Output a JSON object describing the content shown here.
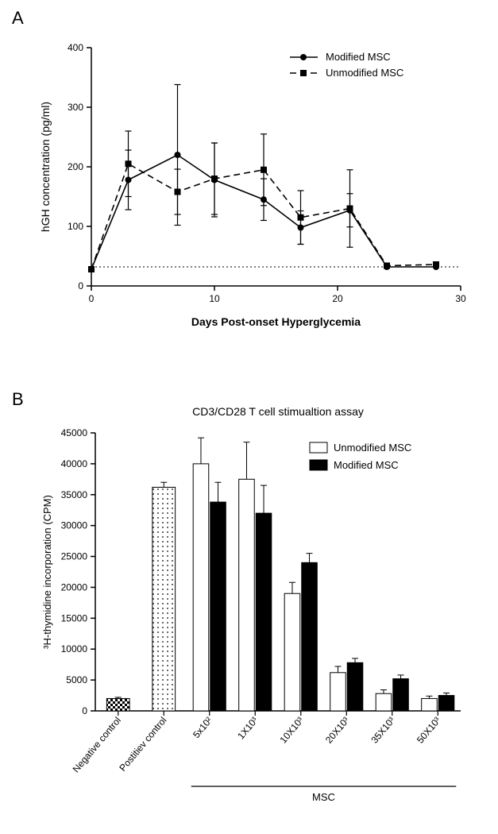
{
  "panelA": {
    "label": "A",
    "type": "line",
    "title": "",
    "xlabel": "Days Post-onset Hyperglycemia",
    "ylabel": "hGH concentration (pg/ml)",
    "label_fontsize": 14,
    "tick_fontsize": 12,
    "xlim": [
      0,
      30
    ],
    "ylim": [
      0,
      400
    ],
    "xtick_step": 10,
    "ytick_step": 100,
    "axis_color": "#000000",
    "background_color": "#ffffff",
    "reference_line_y": 32,
    "reference_line_dash": "dotted",
    "series": [
      {
        "name": "Modified MSC",
        "marker": "circle",
        "dash": "solid",
        "color": "#000000",
        "x": [
          0,
          3,
          7,
          10,
          14,
          17,
          21,
          24,
          28
        ],
        "y": [
          28,
          178,
          220,
          178,
          145,
          98,
          127,
          32,
          32
        ],
        "err": [
          0,
          50,
          118,
          62,
          35,
          28,
          28,
          0,
          0
        ]
      },
      {
        "name": "Unmodified MSC",
        "marker": "square",
        "dash": "dashed",
        "color": "#000000",
        "x": [
          0,
          3,
          7,
          10,
          14,
          17,
          21,
          24,
          28
        ],
        "y": [
          28,
          205,
          158,
          180,
          195,
          115,
          130,
          34,
          36
        ],
        "err": [
          0,
          55,
          38,
          60,
          60,
          45,
          65,
          0,
          0
        ]
      }
    ],
    "legend": {
      "position": "top-right",
      "fontsize": 13
    }
  },
  "panelB": {
    "label": "B",
    "type": "bar",
    "title": "CD3/CD28 T cell stimualtion assay",
    "title_fontsize": 14,
    "xlabel": "",
    "ylabel": "³H-thymidine incorporation (CPM)",
    "label_fontsize": 13,
    "tick_fontsize": 12,
    "ylim": [
      0,
      45000
    ],
    "ytick_step": 5000,
    "axis_color": "#000000",
    "background_color": "#ffffff",
    "group_line_label": "MSC",
    "categories": [
      "Negative control",
      "Postitiev control",
      "5x10²",
      "1X10³",
      "10X10³",
      "20X10³",
      "35X10³",
      "50X10³"
    ],
    "controls": [
      {
        "idx": 0,
        "value": 2000,
        "err": 200,
        "fill": "checker"
      },
      {
        "idx": 1,
        "value": 36200,
        "err": 800,
        "fill": "dots"
      }
    ],
    "series": [
      {
        "name": "Unmodified MSC",
        "fill": "#ffffff",
        "stroke": "#000000",
        "values": [
          40000,
          37500,
          19000,
          6200,
          2800,
          2000
        ],
        "err": [
          4200,
          6000,
          1800,
          1000,
          600,
          400
        ]
      },
      {
        "name": "Modified MSC",
        "fill": "#000000",
        "stroke": "#000000",
        "values": [
          33800,
          32000,
          24000,
          7800,
          5200,
          2500
        ],
        "err": [
          3200,
          4500,
          1500,
          700,
          600,
          400
        ]
      }
    ],
    "legend": {
      "fontsize": 13
    }
  }
}
